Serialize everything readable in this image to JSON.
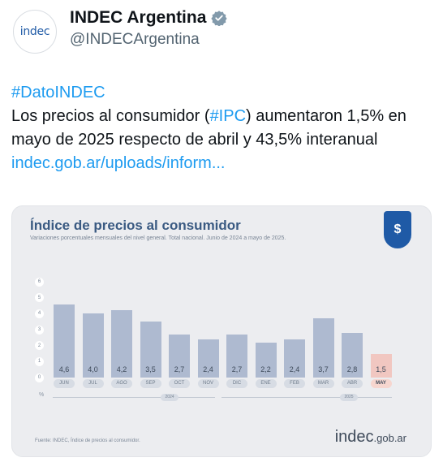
{
  "header": {
    "avatar_text": "indec",
    "display_name": "INDEC Argentina",
    "handle": "@INDECArgentina"
  },
  "tweet": {
    "hashtag_line": "#DatoINDEC",
    "text_part1": "Los precios al consumidor (",
    "hashtag_ipc": "#IPC",
    "text_part2": ") aumentaron 1,5% en mayo de 2025 respecto de abril y 43,5% interanual ",
    "link": "indec.gob.ar/uploads/inform..."
  },
  "card": {
    "badge_symbol": "$",
    "subtitle": "Variaciones porcentuales mensuales del nivel general. Total nacional. Junio de 2024 a mayo de 2025.",
    "pct_symbol": "%",
    "year_2024": "2024",
    "year_2025": "2025",
    "source": "Fuente: INDEC, Índice de precios al consumidor.",
    "brand_main": "indec",
    "brand_suffix": ".gob.ar"
  },
  "colors": {
    "bar": "#aebad0",
    "bar_highlight": "#f1c7c1",
    "title": "#3a5a82",
    "link": "#1d9bf0"
  },
  "chart_data": {
    "type": "bar",
    "title": "Índice de precios al consumidor",
    "categories": [
      "JUN",
      "JUL",
      "AGO",
      "SEP",
      "OCT",
      "NOV",
      "DIC",
      "ENE",
      "FEB",
      "MAR",
      "ABR",
      "MAY"
    ],
    "values": [
      4.6,
      4.0,
      4.2,
      3.5,
      2.7,
      2.4,
      2.7,
      2.2,
      2.4,
      3.7,
      2.8,
      1.5
    ],
    "labels": [
      "4,6",
      "4,0",
      "4,2",
      "3,5",
      "2,7",
      "2,4",
      "2,7",
      "2,2",
      "2,4",
      "3,7",
      "2,8",
      "1,5"
    ],
    "highlight_index": 11,
    "yticks": [
      "0",
      "1",
      "2",
      "3",
      "4",
      "5",
      "6"
    ],
    "ylim": [
      0,
      6
    ],
    "grid": false
  }
}
